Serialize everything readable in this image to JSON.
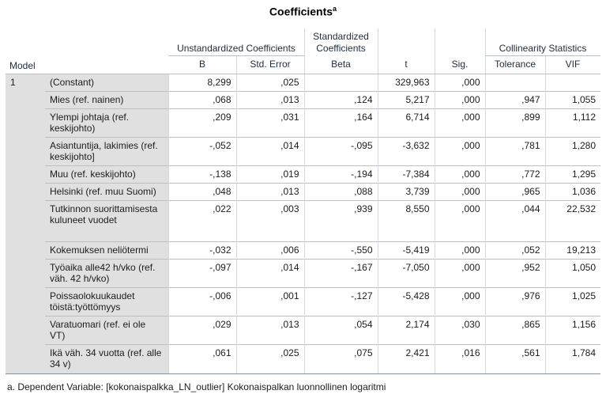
{
  "title": "Coefficients",
  "title_sup": "a",
  "headers": {
    "model": "Model",
    "unstd_group": "Unstandardized Coefficients",
    "std_group_line1": "Standardized",
    "std_group_line2": "Coefficients",
    "coll_group": "Collinearity Statistics",
    "b": "B",
    "se": "Std. Error",
    "beta": "Beta",
    "t": "t",
    "sig": "Sig.",
    "tolerance": "Tolerance",
    "vif": "VIF"
  },
  "model_number": "1",
  "rows": [
    {
      "label": "(Constant)",
      "b": "8,299",
      "se": ",025",
      "beta": "",
      "t": "329,963",
      "sig": ",000",
      "tol": "",
      "vif": ""
    },
    {
      "label": "Mies (ref. nainen)",
      "b": ",068",
      "se": ",013",
      "beta": ",124",
      "t": "5,217",
      "sig": ",000",
      "tol": ",947",
      "vif": "1,055"
    },
    {
      "label": "Ylempi johtaja (ref. keskijohto)",
      "b": ",209",
      "se": ",031",
      "beta": ",164",
      "t": "6,714",
      "sig": ",000",
      "tol": ",899",
      "vif": "1,112"
    },
    {
      "label": "Asiantuntija, lakimies (ref. keskijohto]",
      "b": "-,052",
      "se": ",014",
      "beta": "-,095",
      "t": "-3,632",
      "sig": ",000",
      "tol": ",781",
      "vif": "1,280"
    },
    {
      "label": "Muu (ref. keskijohto)",
      "b": "-,138",
      "se": ",019",
      "beta": "-,194",
      "t": "-7,384",
      "sig": ",000",
      "tol": ",772",
      "vif": "1,295"
    },
    {
      "label": "Helsinki (ref. muu Suomi)",
      "b": ",048",
      "se": ",013",
      "beta": ",088",
      "t": "3,739",
      "sig": ",000",
      "tol": ",965",
      "vif": "1,036"
    },
    {
      "label": "Tutkinnon suorittamisesta kuluneet vuodet",
      "b": ",022",
      "se": ",003",
      "beta": ",939",
      "t": "8,550",
      "sig": ",000",
      "tol": ",044",
      "vif": "22,532"
    },
    {
      "label": "Kokemuksen neliötermi",
      "b": "-,032",
      "se": ",006",
      "beta": "-,550",
      "t": "-5,419",
      "sig": ",000",
      "tol": ",052",
      "vif": "19,213"
    },
    {
      "label": "Työaika alle42 h/vko (ref. väh. 42 h/vko)",
      "b": "-,097",
      "se": ",014",
      "beta": "-,167",
      "t": "-7,050",
      "sig": ",000",
      "tol": ",952",
      "vif": "1,050"
    },
    {
      "label": "Poissaolokuukaudet töistä:työttömyys",
      "b": "-,006",
      "se": ",001",
      "beta": "-,127",
      "t": "-5,428",
      "sig": ",000",
      "tol": ",976",
      "vif": "1,025"
    },
    {
      "label": "Varatuomari (ref. ei ole VT)",
      "b": ",029",
      "se": ",013",
      "beta": ",054",
      "t": "2,174",
      "sig": ",030",
      "tol": ",865",
      "vif": "1,156"
    },
    {
      "label": "Ikä väh. 34 vuotta (ref. alle 34 v)",
      "b": ",061",
      "se": ",025",
      "beta": ",075",
      "t": "2,421",
      "sig": ",016",
      "tol": ",561",
      "vif": "1,784"
    }
  ],
  "footnote": "a. Dependent Variable: [kokonaispalkka_LN_outlier] Kokonaispalkan luonnollinen logaritmi",
  "colors": {
    "label_bg": "#e0e0e0",
    "grid": "#b9c0c8"
  }
}
